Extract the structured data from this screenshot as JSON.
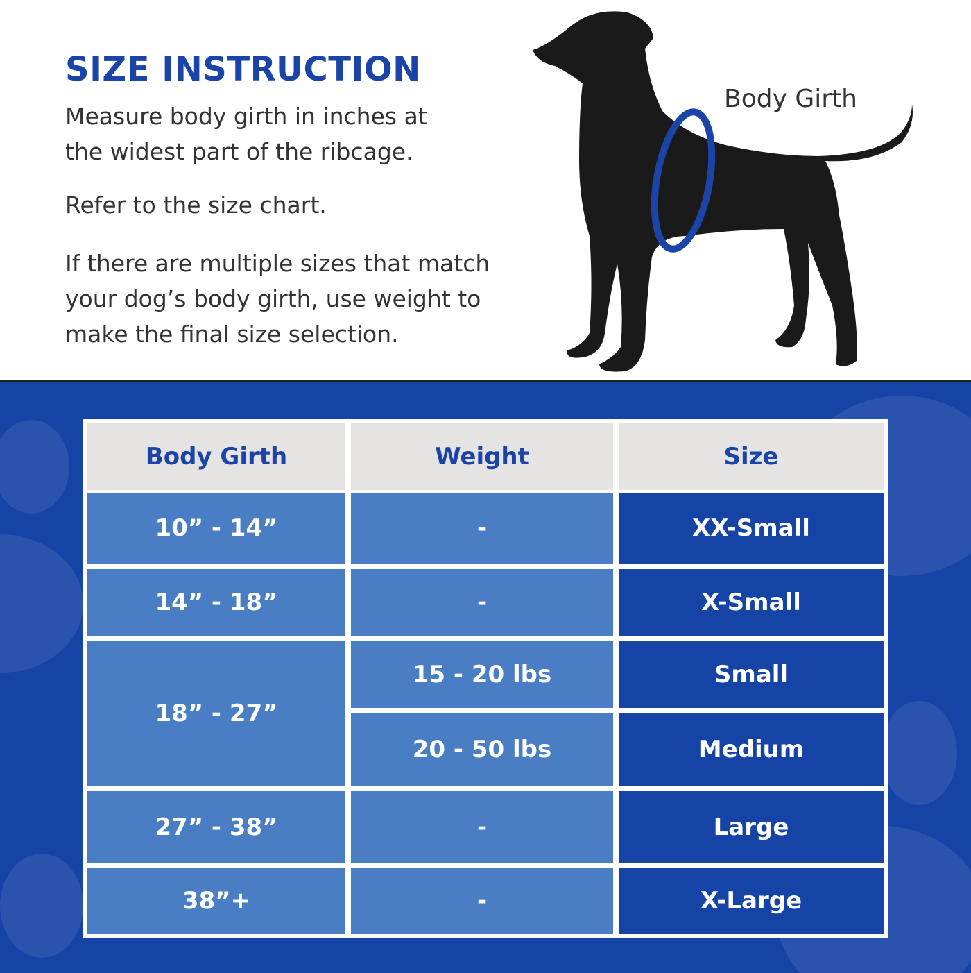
{
  "header": {
    "title": "SIZE INSTRUCTION",
    "paragraphs": [
      [
        "Measure body girth in inches at",
        "the widest part of the ribcage."
      ],
      [
        "Refer to the size chart."
      ],
      [
        "If there are multiple sizes that match",
        "your dog’s body girth, use weight to",
        "make the final size selection."
      ]
    ],
    "illustration_label": "Body Girth"
  },
  "colors": {
    "brand_blue": "#1543a6",
    "light_blue": "#4a7ec4",
    "header_gray": "#e5e4e3"
  },
  "table": {
    "columns": [
      "Body Girth",
      "Weight",
      "Size"
    ],
    "rows": [
      {
        "girth": "10” - 14”",
        "weight": "-",
        "size": "XX-Small"
      },
      {
        "girth": "14” - 18”",
        "weight": "-",
        "size": "X-Small"
      },
      {
        "girth": "18” - 27”",
        "weight": "15 - 20 lbs",
        "size": "Small"
      },
      {
        "girth": "18” - 27”",
        "weight": "20 - 50 lbs",
        "size": "Medium"
      },
      {
        "girth": "27” - 38”",
        "weight": "-",
        "size": "Large"
      },
      {
        "girth": "38”+",
        "weight": "-",
        "size": "X-Large"
      }
    ]
  }
}
